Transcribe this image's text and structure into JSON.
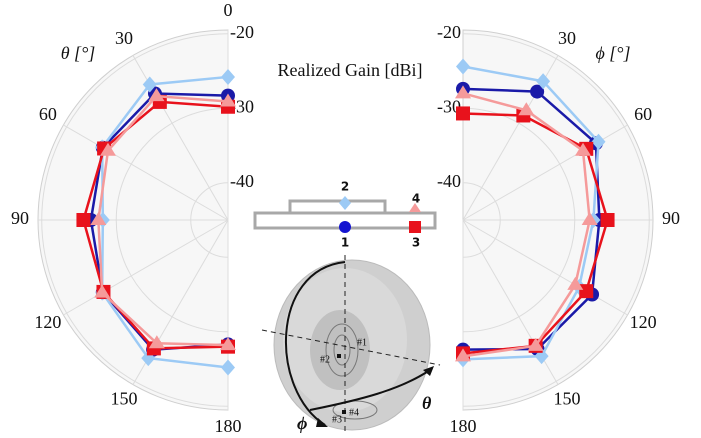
{
  "figure_title": "Realized Gain [dBi]",
  "chart_data": [
    {
      "type": "polar",
      "axis_label": "θ [°]",
      "direction": "left",
      "theta": [
        0,
        30,
        60,
        90,
        120,
        150,
        180
      ],
      "thetaticks": [
        0,
        30,
        60,
        90,
        120,
        150,
        180
      ],
      "rlim": [
        -45,
        -19.5
      ],
      "rticks": [
        -20,
        -30,
        -40
      ],
      "grid": true,
      "series": [
        {
          "color": "#1a1aa8",
          "marker": "circle",
          "values": [
            -28.3,
            -25.4,
            -25.6,
            -26.6,
            -25.6,
            -24.9,
            -28.3
          ]
        },
        {
          "color": "#9ccaf5",
          "marker": "diamond",
          "values": [
            -25.8,
            -24.0,
            -25.5,
            -28.2,
            -25.5,
            -23.6,
            -25.2
          ]
        },
        {
          "color": "#e8121c",
          "marker": "square",
          "values": [
            -29.8,
            -26.7,
            -25.8,
            -25.6,
            -25.7,
            -25.1,
            -28.0
          ]
        },
        {
          "color": "#f59a9a",
          "marker": "triangle",
          "values": [
            -29.1,
            -25.8,
            -26.4,
            -27.6,
            -25.5,
            -25.9,
            -28.2
          ]
        }
      ]
    },
    {
      "type": "polar",
      "axis_label": "ϕ [°]",
      "direction": "right",
      "theta": [
        0,
        30,
        60,
        90,
        120,
        150,
        180
      ],
      "thetaticks": [
        30,
        60,
        90,
        120,
        150,
        180
      ],
      "rlim": [
        -45,
        -19.5
      ],
      "rticks": [
        -20,
        -30,
        -40
      ],
      "grid": true,
      "series": [
        {
          "color": "#1a1aa8",
          "marker": "circle",
          "values": [
            -27.4,
            -25.1,
            -24.4,
            -26.7,
            -25.0,
            -25.0,
            -27.6
          ]
        },
        {
          "color": "#9ccaf5",
          "marker": "diamond",
          "values": [
            -24.4,
            -23.5,
            -24.0,
            -27.5,
            -27.0,
            -23.9,
            -26.3
          ]
        },
        {
          "color": "#e8121c",
          "marker": "square",
          "values": [
            -30.7,
            -28.8,
            -25.9,
            -25.6,
            -25.9,
            -25.5,
            -27.1
          ]
        },
        {
          "color": "#f59a9a",
          "marker": "triangle",
          "values": [
            -28.0,
            -28.0,
            -26.4,
            -28.0,
            -27.6,
            -25.5,
            -26.7
          ]
        }
      ]
    }
  ],
  "diagram": {
    "ports": [
      "1",
      "2",
      "3",
      "4"
    ],
    "feeds": [
      "#1",
      "#2",
      "#3",
      "#4"
    ],
    "angles": [
      "θ",
      "ϕ"
    ]
  }
}
